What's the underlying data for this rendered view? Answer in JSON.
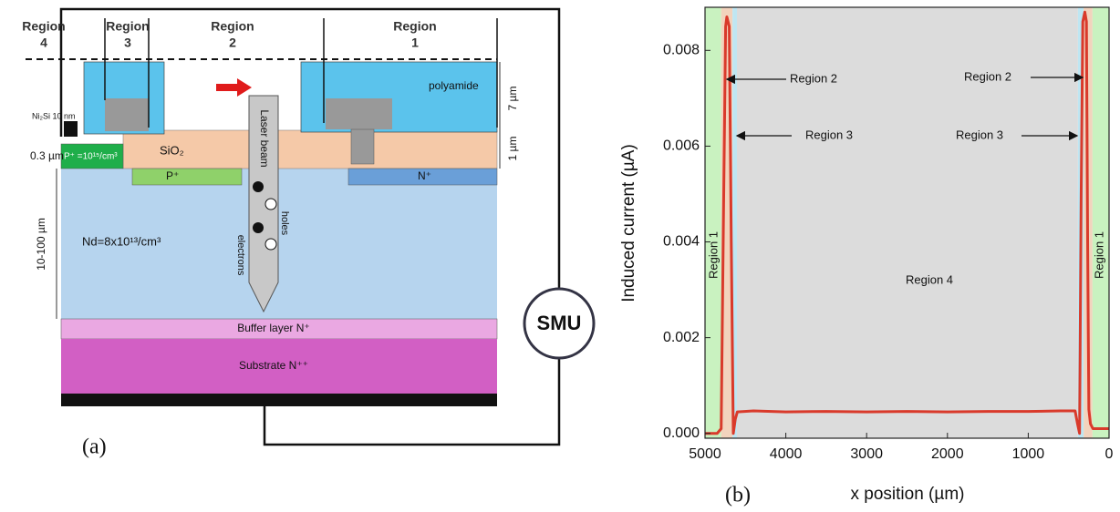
{
  "diagram": {
    "region_labels": [
      "Region",
      "4",
      "Region",
      "3",
      "Region",
      "2",
      "Region",
      "1"
    ],
    "polyamide": "polyamide",
    "thickness_polyamide": "7 µm",
    "thickness_oxide": "1 µm",
    "contact": "Ni₂Si 10 nm",
    "thickness_p": "0.3 µm",
    "p_plus": "P⁺ =10¹⁵/cm³",
    "oxide": "SiO₂",
    "p_well": "P⁺",
    "n_plus": "N⁺",
    "laser": "Laser beam",
    "holes": "holes",
    "electrons": "electrons",
    "thickness_drift": "10-100 µm",
    "doping": "Nd=8x10¹³/cm³",
    "buffer": "Buffer layer N⁺",
    "substrate": "Substrate N⁺⁺",
    "smu": "SMU",
    "panel": "(a)"
  },
  "chart_data": {
    "type": "line",
    "panel": "(b)",
    "x_label": "x position (µm)",
    "y_label": "Induced current (µA)",
    "x": [
      5000,
      4850,
      4800,
      4775,
      4745,
      4730,
      4700,
      4675,
      4650,
      4625,
      4600,
      4400,
      4000,
      3500,
      3000,
      2500,
      2000,
      1500,
      1000,
      600,
      420,
      390,
      365,
      345,
      325,
      300,
      280,
      265,
      250,
      230,
      200,
      0
    ],
    "values": [
      0,
      0,
      0.0001,
      0.004,
      0.0085,
      0.0087,
      0.0085,
      0.004,
      0,
      0.0003,
      0.00045,
      0.00047,
      0.00045,
      0.00046,
      0.00045,
      0.00046,
      0.00045,
      0.00046,
      0.00046,
      0.00047,
      0.00047,
      0.0002,
      0,
      0.005,
      0.0086,
      0.0088,
      0.0086,
      0.004,
      0.0005,
      0.0002,
      0.0001,
      0.0001
    ],
    "color": "#d93a2b",
    "xlim": [
      5000,
      0
    ],
    "ylim": [
      -0.0001,
      0.0089
    ],
    "xticks": [
      5000,
      4000,
      3000,
      2000,
      1000,
      0
    ],
    "yticks": [
      {
        "value": 0,
        "label": "0.000"
      },
      {
        "value": 0.002,
        "label": "0.002"
      },
      {
        "value": 0.004,
        "label": "0.004"
      },
      {
        "value": 0.006,
        "label": "0.006"
      },
      {
        "value": 0.008,
        "label": "0.008"
      }
    ],
    "bands": [
      {
        "from": 5000,
        "to": 4800,
        "color": "#c9f2c0"
      },
      {
        "from": 4800,
        "to": 4660,
        "color": "#f2d3bd"
      },
      {
        "from": 4660,
        "to": 4605,
        "color": "#bfe6f2"
      },
      {
        "from": 4605,
        "to": 385,
        "color": "#dcdcdc"
      },
      {
        "from": 385,
        "to": 315,
        "color": "#bfe6f2"
      },
      {
        "from": 315,
        "to": 205,
        "color": "#f2d3bd"
      },
      {
        "from": 205,
        "to": 0,
        "color": "#c9f2c0"
      }
    ],
    "annotations": [
      "Region 1",
      "Region 2",
      "Region 3",
      "Region 4",
      "Region 2",
      "Region 3",
      "Region 1"
    ]
  }
}
